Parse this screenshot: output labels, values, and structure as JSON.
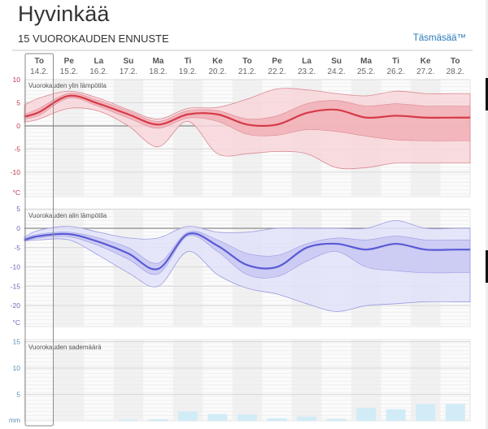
{
  "header": {
    "title": "Hyvinkää",
    "subtitle": "15 VUOROKAUDEN ENNUSTE",
    "brand_link": "Täsmäsää™"
  },
  "days": [
    {
      "day": "To",
      "date": "14.2."
    },
    {
      "day": "Pe",
      "date": "15.2."
    },
    {
      "day": "La",
      "date": "16.2."
    },
    {
      "day": "Su",
      "date": "17.2."
    },
    {
      "day": "Ma",
      "date": "18.2."
    },
    {
      "day": "Ti",
      "date": "19.2."
    },
    {
      "day": "Ke",
      "date": "20.2."
    },
    {
      "day": "To",
      "date": "21.2."
    },
    {
      "day": "Pe",
      "date": "22.2."
    },
    {
      "day": "La",
      "date": "23.2."
    },
    {
      "day": "Su",
      "date": "24.2."
    },
    {
      "day": "Ma",
      "date": "25.2."
    },
    {
      "day": "Ti",
      "date": "26.2."
    },
    {
      "day": "Ke",
      "date": "27.2."
    },
    {
      "day": "To",
      "date": "28.2."
    }
  ],
  "selected_day_index": 0,
  "colors": {
    "max_line": "#d63a48",
    "max_band_outer": "#f8d6d9",
    "max_band_inner": "#f0aab1",
    "max_band_edge": "#d98a93",
    "max_tick": "#c0394a",
    "min_line": "#5a5ad6",
    "min_band_outer": "#e2e2fa",
    "min_band_inner": "#c4c4f2",
    "min_band_edge": "#9b9be0",
    "min_tick": "#6a6ab8",
    "precip_bar": "#d2ecf7",
    "precip_tick": "#5a8fb0",
    "link": "#2a7ab8"
  },
  "chart_data": [
    {
      "type": "area",
      "title": "Vuorokauden ylin lämpötila",
      "ylabel": "°C",
      "ylim": [
        -15,
        10
      ],
      "yticks": [
        10,
        5,
        0,
        -5,
        -10
      ],
      "yticks_labels": [
        "10",
        "5",
        "0",
        "-5",
        "-10"
      ],
      "unit_label": "°C",
      "categories": [
        "14.2.",
        "15.2.",
        "16.2.",
        "17.2.",
        "18.2.",
        "19.2.",
        "20.2.",
        "21.2.",
        "22.2.",
        "23.2.",
        "24.2.",
        "25.2.",
        "26.2.",
        "27.2.",
        "28.2."
      ],
      "series": [
        {
          "name": "median",
          "values": [
            3.0,
            6.5,
            4.8,
            2.5,
            0.3,
            2.5,
            2.5,
            0.3,
            0.3,
            2.8,
            3.5,
            1.8,
            2.2,
            1.8,
            1.8
          ]
        },
        {
          "name": "inner_upper",
          "values": [
            3.8,
            7.0,
            5.5,
            3.2,
            1.0,
            3.3,
            3.3,
            1.5,
            2.2,
            4.8,
            5.5,
            4.3,
            4.8,
            4.3,
            4.3
          ]
        },
        {
          "name": "inner_lower",
          "values": [
            2.3,
            6.0,
            4.2,
            1.7,
            -0.5,
            1.7,
            1.0,
            -1.8,
            -2.0,
            -0.8,
            -1.2,
            -2.2,
            -3.0,
            -3.2,
            -3.2
          ]
        },
        {
          "name": "outer_upper",
          "values": [
            6.0,
            7.5,
            6.0,
            3.5,
            1.5,
            3.8,
            4.0,
            5.8,
            8.0,
            7.8,
            7.0,
            6.5,
            7.5,
            7.0,
            7.0
          ]
        },
        {
          "name": "outer_lower",
          "values": [
            1.5,
            3.8,
            3.2,
            0.0,
            -4.5,
            1.0,
            -6.0,
            -6.0,
            -5.5,
            -6.0,
            -9.0,
            -9.0,
            -8.0,
            -8.0,
            -8.0
          ]
        }
      ],
      "start_edge": {
        "median": 2.0,
        "inner_upper": 2.5,
        "inner_lower": 1.5,
        "outer_upper": 4.5,
        "outer_lower": 0.8
      }
    },
    {
      "type": "area",
      "title": "Vuorokauden alin lämpötila",
      "ylabel": "°C",
      "ylim": [
        -25,
        5
      ],
      "yticks": [
        5,
        0,
        -5,
        -10,
        -15,
        -20
      ],
      "yticks_labels": [
        "5",
        "0",
        "-5",
        "-10",
        "-15",
        "-20"
      ],
      "unit_label": "°C",
      "categories": [
        "14.2.",
        "15.2.",
        "16.2.",
        "17.2.",
        "18.2.",
        "19.2.",
        "20.2.",
        "21.2.",
        "22.2.",
        "23.2.",
        "24.2.",
        "25.2.",
        "26.2.",
        "27.2.",
        "28.2."
      ],
      "series": [
        {
          "name": "median",
          "values": [
            -2.0,
            -1.5,
            -3.5,
            -6.5,
            -10.5,
            -1.5,
            -4.5,
            -9.5,
            -10.0,
            -5.0,
            -4.0,
            -5.5,
            -4.0,
            -5.5,
            -5.5
          ]
        },
        {
          "name": "inner_upper",
          "values": [
            -1.5,
            -1.0,
            -2.5,
            -5.0,
            -9.0,
            -1.0,
            -3.0,
            -6.5,
            -7.0,
            -4.0,
            -2.5,
            -3.0,
            -2.0,
            -3.0,
            -3.0
          ]
        },
        {
          "name": "inner_lower",
          "values": [
            -2.5,
            -2.2,
            -4.5,
            -8.0,
            -11.8,
            -2.0,
            -6.0,
            -12.0,
            -12.5,
            -8.5,
            -6.0,
            -10.0,
            -11.0,
            -11.5,
            -11.5
          ]
        },
        {
          "name": "outer_upper",
          "values": [
            -0.5,
            0.5,
            -1.0,
            -2.5,
            -2.5,
            0.5,
            -1.0,
            -1.0,
            0.0,
            0.0,
            0.0,
            0.0,
            2.0,
            0.0,
            0.0
          ]
        },
        {
          "name": "outer_lower",
          "values": [
            -3.0,
            -3.0,
            -7.0,
            -11.5,
            -15.0,
            -6.0,
            -12.0,
            -15.5,
            -17.0,
            -19.5,
            -21.5,
            -20.0,
            -19.5,
            -19.0,
            -19.0
          ]
        }
      ],
      "start_edge": {
        "median": -3.0,
        "inner_upper": -2.5,
        "inner_lower": -3.2,
        "outer_upper": -2.2,
        "outer_lower": -3.3
      }
    },
    {
      "type": "bar",
      "title": "Vuorokauden sademäärä",
      "ylabel": "mm",
      "ylim": [
        0,
        15
      ],
      "yticks": [
        15,
        10,
        5
      ],
      "yticks_labels": [
        "15",
        "10",
        "5"
      ],
      "unit_label": "mm",
      "categories": [
        "14.2.",
        "15.2.",
        "16.2.",
        "17.2.",
        "18.2.",
        "19.2.",
        "20.2.",
        "21.2.",
        "22.2.",
        "23.2.",
        "24.2.",
        "25.2.",
        "26.2.",
        "27.2.",
        "28.2."
      ],
      "values": [
        0.0,
        0.0,
        0.1,
        0.2,
        0.3,
        1.8,
        1.3,
        1.2,
        0.5,
        0.8,
        0.4,
        2.5,
        2.2,
        3.2,
        3.2
      ]
    }
  ]
}
